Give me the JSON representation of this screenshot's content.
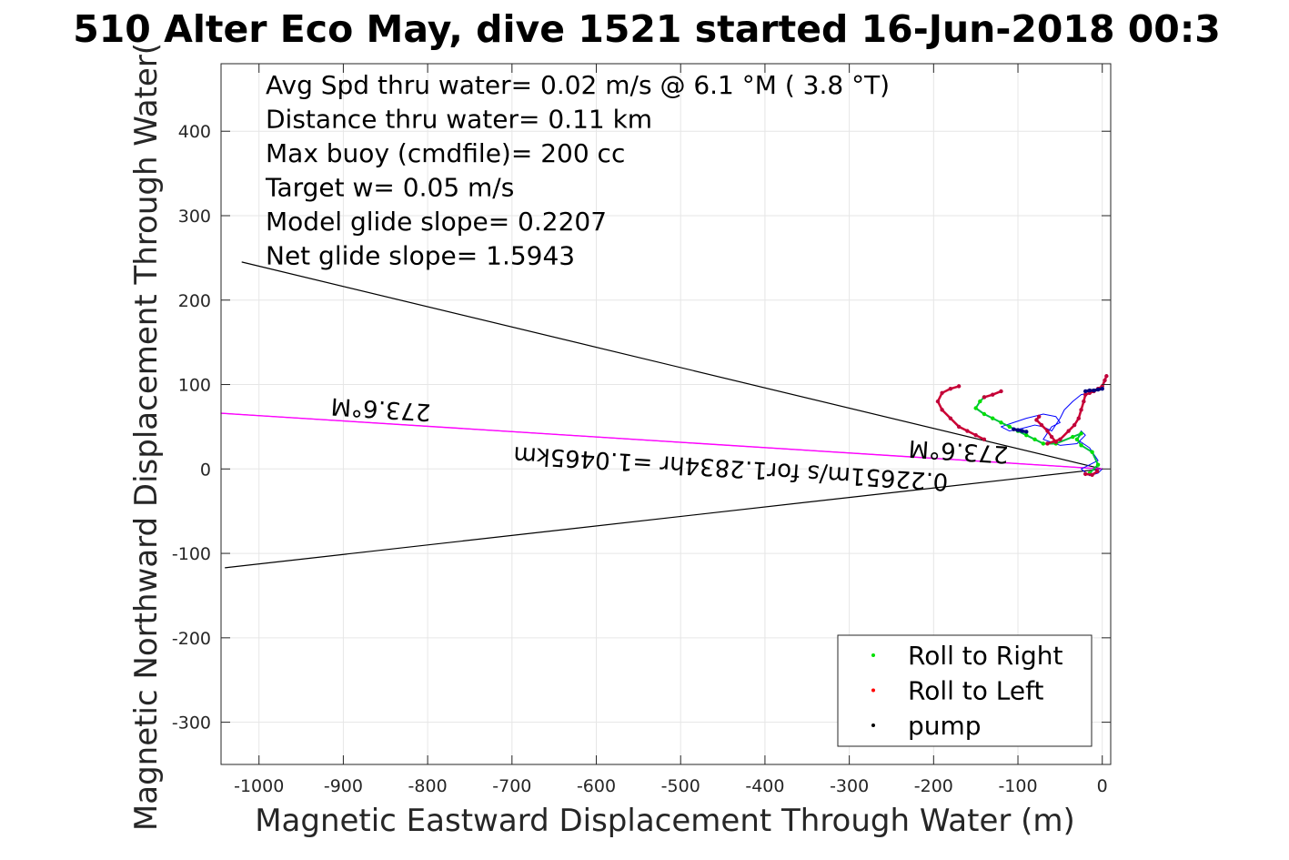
{
  "chart_data": {
    "type": "line",
    "title": "510 Alter Eco May, dive 1521 started 16-Jun-2018 00:3",
    "xlabel": "Magnetic Eastward Displacement Through Water (m)",
    "ylabel": "Magnetic Northward Displacement Through Water(",
    "xlim": [
      -1045,
      10
    ],
    "ylim": [
      -350,
      480
    ],
    "xticks": [
      -1000,
      -900,
      -800,
      -700,
      -600,
      -500,
      -400,
      -300,
      -200,
      -100,
      0
    ],
    "yticks": [
      -300,
      -200,
      -100,
      0,
      100,
      200,
      300,
      400
    ],
    "grid": true,
    "info_lines": [
      "Avg Spd thru water=  0.02 m/s @   6.1 °M (  3.8 °T)",
      "Distance thru water=  0.11 km",
      "Max buoy (cmdfile)= 200 cc",
      "Target w= 0.05 m/s",
      "Model glide slope= 0.2207",
      "Net glide slope= 1.5943"
    ],
    "legend": {
      "position": "bottom-right",
      "entries": [
        {
          "label": "Roll to Right",
          "color": "#00e000"
        },
        {
          "label": "Roll to Left",
          "color": "#ff0000"
        },
        {
          "label": "pump",
          "color": "#000000"
        }
      ]
    },
    "annotations": [
      {
        "text": "273.6°M",
        "x": -855,
        "y": 80,
        "angle": 183.6
      },
      {
        "text": "0.22651m/s for1.2834hr =1.0465km",
        "x": -440,
        "y": 10,
        "angle": 183.6
      },
      {
        "text": "273.6°M",
        "x": -170,
        "y": 30,
        "angle": 183.6
      }
    ],
    "series": [
      {
        "style": "black-line",
        "x": [
          0,
          -1020
        ],
        "y": [
          0,
          245
        ]
      },
      {
        "style": "black-line",
        "x": [
          0,
          -1040
        ],
        "y": [
          0,
          -117
        ]
      },
      {
        "style": "magenta-line",
        "x": [
          0,
          -1045
        ],
        "y": [
          0,
          66
        ]
      },
      {
        "style": "blue-path",
        "x": [
          0,
          -5,
          -15,
          -25,
          -15,
          -5,
          -15,
          -30,
          -25,
          -20,
          -30,
          -50,
          -70,
          -60,
          -50,
          -55,
          -70,
          -90,
          -105,
          -120,
          -110,
          -95,
          -80,
          -70,
          -60,
          -50,
          -45,
          -35,
          -25,
          -15,
          -8,
          -2,
          2,
          5
        ],
        "y": [
          0,
          -5,
          -8,
          0,
          5,
          10,
          25,
          35,
          45,
          40,
          30,
          28,
          35,
          50,
          55,
          62,
          65,
          60,
          55,
          50,
          45,
          48,
          52,
          50,
          45,
          60,
          70,
          80,
          88,
          90,
          92,
          95,
          100,
          110
        ]
      },
      {
        "style": "green-segment",
        "x": [
          -15,
          -5,
          -12,
          -25,
          -30,
          -25,
          -35,
          -55,
          -70,
          -80,
          -90,
          -100,
          -110,
          -120,
          -130,
          -140,
          -150,
          -145,
          -140
        ],
        "y": [
          -5,
          5,
          20,
          28,
          35,
          42,
          38,
          30,
          30,
          35,
          40,
          45,
          50,
          55,
          60,
          65,
          72,
          80,
          85
        ]
      },
      {
        "style": "red-segment",
        "x": [
          -140,
          -150,
          -160,
          -170,
          -180,
          -190,
          -195,
          -190,
          -180,
          -170
        ],
        "y": [
          35,
          40,
          45,
          50,
          60,
          70,
          80,
          90,
          95,
          98
        ]
      },
      {
        "style": "red-segment",
        "x": [
          -55,
          -60,
          -65,
          -72,
          -78,
          -75
        ],
        "y": [
          32,
          38,
          45,
          52,
          58,
          62
        ]
      },
      {
        "style": "red-segment",
        "x": [
          -65,
          -50,
          -40,
          -33,
          -28,
          -25,
          -22,
          -20,
          -15,
          -10,
          -5,
          0,
          3,
          5
        ],
        "y": [
          30,
          35,
          45,
          52,
          60,
          70,
          80,
          88,
          90,
          92,
          95,
          98,
          105,
          110
        ]
      },
      {
        "style": "red-segment",
        "x": [
          -6,
          -12,
          -20
        ],
        "y": [
          -3,
          -7,
          -6
        ]
      },
      {
        "style": "red-segment",
        "x": [
          -140,
          -130,
          -120
        ],
        "y": [
          85,
          88,
          92
        ]
      },
      {
        "style": "pump-segment",
        "x": [
          -90,
          -95,
          -100,
          -105
        ],
        "y": [
          44,
          45,
          46,
          47
        ]
      },
      {
        "style": "pump-segment",
        "x": [
          -20,
          -15,
          -10,
          -5,
          0
        ],
        "y": [
          92,
          93,
          93,
          94,
          95
        ]
      }
    ]
  }
}
